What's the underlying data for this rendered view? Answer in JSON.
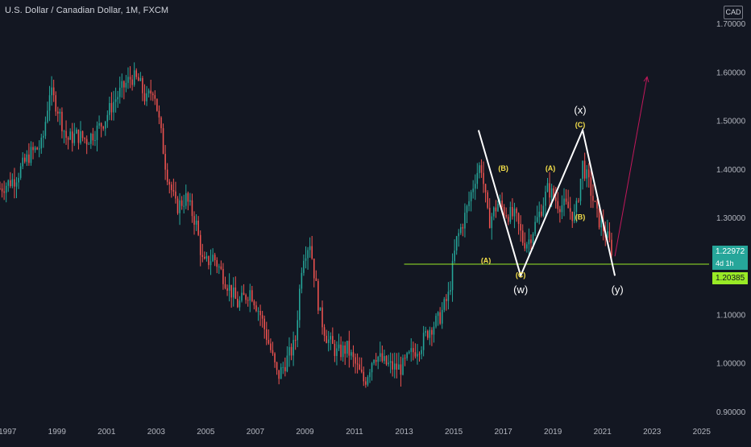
{
  "header": {
    "symbol": "U.S. Dollar / Canadian Dollar, 1M, FXCM",
    "currency_button": "CAD"
  },
  "price_tags": {
    "last_price": "1.22972",
    "countdown": "4d 1h",
    "support_level": "1.20385"
  },
  "colors": {
    "background": "#131722",
    "up_candle": "#26a69a",
    "down_candle": "#ef5350",
    "support_line": "#99ea26",
    "wave_lines": "#ffffff",
    "wave_labels": "#f5e04a",
    "projection_arrow": "#c2185b",
    "axis_text": "#b2b5be"
  },
  "chart_data": {
    "type": "candlestick",
    "title": "U.S. Dollar / Canadian Dollar, 1M, FXCM",
    "x_tick_labels": [
      "1997",
      "1999",
      "2001",
      "2003",
      "2005",
      "2007",
      "2009",
      "2011",
      "2013",
      "2015",
      "2017",
      "2019",
      "2021",
      "2023",
      "2025"
    ],
    "y_tick_labels": [
      "0.90000",
      "1.00000",
      "1.10000",
      "1.20000",
      "1.30000",
      "1.40000",
      "1.50000",
      "1.60000",
      "1.70000"
    ],
    "xlim": [
      1996.7,
      2025.3
    ],
    "ylim": [
      0.885,
      1.735
    ],
    "grid": false,
    "close_path": [
      [
        1996.7,
        1.36
      ],
      [
        1997.3,
        1.38
      ],
      [
        1997.9,
        1.43
      ],
      [
        1998.4,
        1.45
      ],
      [
        1998.7,
        1.56
      ],
      [
        1999.0,
        1.53
      ],
      [
        1999.4,
        1.46
      ],
      [
        1999.8,
        1.47
      ],
      [
        2000.2,
        1.46
      ],
      [
        2000.6,
        1.48
      ],
      [
        2000.9,
        1.5
      ],
      [
        2001.3,
        1.54
      ],
      [
        2001.7,
        1.57
      ],
      [
        2002.0,
        1.59
      ],
      [
        2002.3,
        1.58
      ],
      [
        2002.6,
        1.54
      ],
      [
        2002.9,
        1.57
      ],
      [
        2003.2,
        1.47
      ],
      [
        2003.4,
        1.4
      ],
      [
        2003.8,
        1.32
      ],
      [
        2004.2,
        1.34
      ],
      [
        2004.6,
        1.29
      ],
      [
        2004.9,
        1.2
      ],
      [
        2005.3,
        1.22
      ],
      [
        2005.8,
        1.17
      ],
      [
        2006.3,
        1.12
      ],
      [
        2006.8,
        1.15
      ],
      [
        2007.2,
        1.1
      ],
      [
        2007.6,
        1.03
      ],
      [
        2007.9,
        0.97
      ],
      [
        2008.2,
        1.0
      ],
      [
        2008.6,
        1.04
      ],
      [
        2008.9,
        1.22
      ],
      [
        2009.2,
        1.25
      ],
      [
        2009.6,
        1.1
      ],
      [
        2009.9,
        1.05
      ],
      [
        2010.3,
        1.02
      ],
      [
        2010.7,
        1.03
      ],
      [
        2011.0,
        1.0
      ],
      [
        2011.4,
        0.96
      ],
      [
        2011.8,
        1.02
      ],
      [
        2012.2,
        1.0
      ],
      [
        2012.6,
        0.99
      ],
      [
        2012.9,
        0.99
      ],
      [
        2013.3,
        1.02
      ],
      [
        2013.7,
        1.04
      ],
      [
        2014.0,
        1.07
      ],
      [
        2014.4,
        1.09
      ],
      [
        2014.8,
        1.14
      ],
      [
        2015.1,
        1.25
      ],
      [
        2015.5,
        1.31
      ],
      [
        2015.9,
        1.39
      ],
      [
        2016.1,
        1.41
      ],
      [
        2016.4,
        1.29
      ],
      [
        2016.8,
        1.33
      ],
      [
        2017.1,
        1.31
      ],
      [
        2017.5,
        1.3
      ],
      [
        2017.8,
        1.25
      ],
      [
        2018.0,
        1.25
      ],
      [
        2018.4,
        1.3
      ],
      [
        2018.8,
        1.36
      ],
      [
        2019.2,
        1.33
      ],
      [
        2019.6,
        1.32
      ],
      [
        2019.9,
        1.3
      ],
      [
        2020.2,
        1.41
      ],
      [
        2020.5,
        1.36
      ],
      [
        2020.8,
        1.3
      ],
      [
        2021.1,
        1.27
      ],
      [
        2021.4,
        1.23
      ]
    ],
    "support_level": 1.20385,
    "last_price": 1.22972,
    "wave_path": [
      [
        2016.0,
        1.48
      ],
      [
        2017.7,
        1.18
      ],
      [
        2020.2,
        1.48
      ],
      [
        2021.5,
        1.18
      ]
    ],
    "projection": [
      [
        2021.5,
        1.22
      ],
      [
        2022.8,
        1.59
      ]
    ],
    "wave_labels": [
      {
        "text": "(A)",
        "x": 2016.3,
        "y": 1.21
      },
      {
        "text": "(B)",
        "x": 2017.0,
        "y": 1.4
      },
      {
        "text": "(C)",
        "x": 2017.7,
        "y": 1.18
      },
      {
        "text": "(A)",
        "x": 2018.9,
        "y": 1.4
      },
      {
        "text": "(B)",
        "x": 2020.1,
        "y": 1.3
      },
      {
        "text": "(C)",
        "x": 2020.1,
        "y": 1.49
      }
    ],
    "structure_labels": [
      {
        "text": "(w)",
        "x": 2017.7,
        "y": 1.15
      },
      {
        "text": "(x)",
        "x": 2020.1,
        "y": 1.52
      },
      {
        "text": "(y)",
        "x": 2021.6,
        "y": 1.15
      }
    ]
  }
}
